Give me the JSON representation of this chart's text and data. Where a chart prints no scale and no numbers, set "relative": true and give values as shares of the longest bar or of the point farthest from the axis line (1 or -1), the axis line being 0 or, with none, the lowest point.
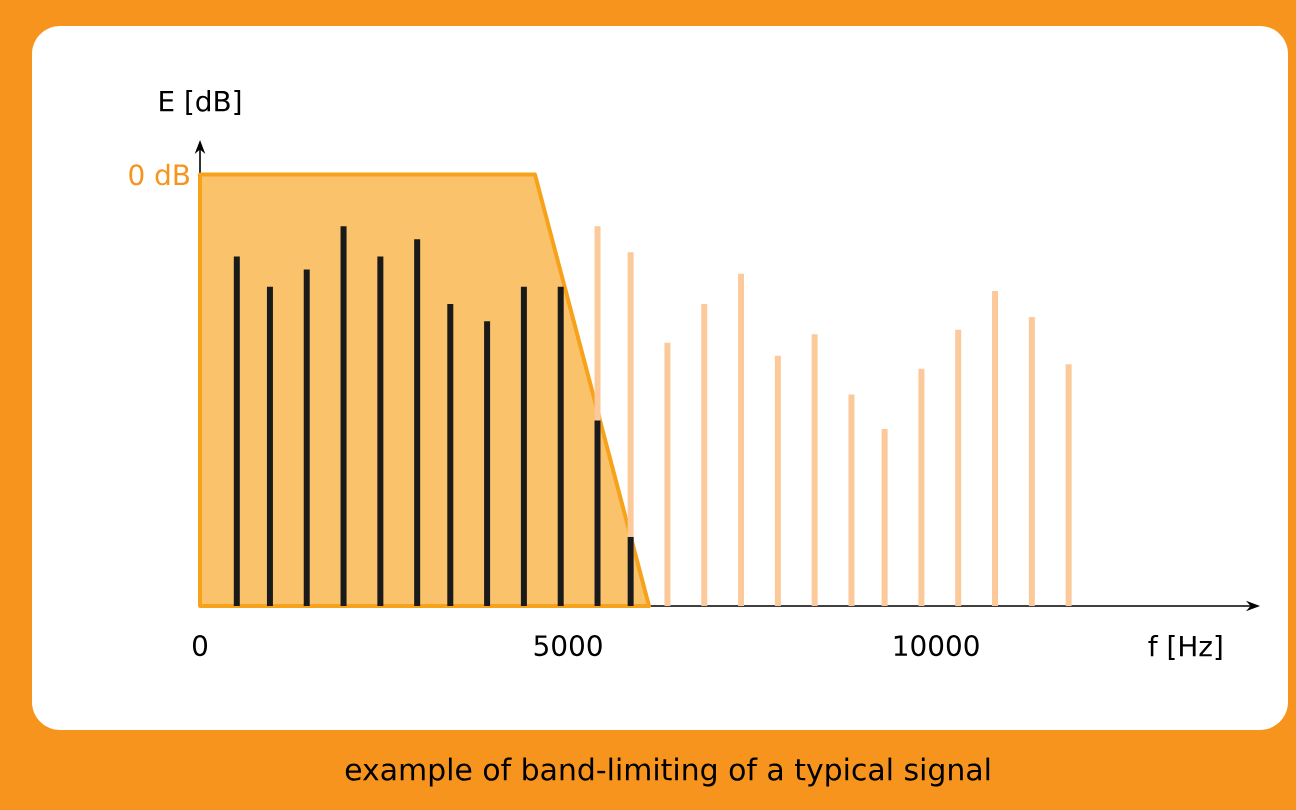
{
  "chart_data": {
    "type": "bar",
    "relative": true,
    "xlabel": "f [Hz]",
    "ylabel": "E [dB]",
    "xlim": [
      0,
      14400
    ],
    "xticks": [
      0,
      5000,
      10000
    ],
    "series": [
      {
        "type": "area",
        "color": "#f7a21b",
        "x": [
          0,
          4550,
          6100
        ],
        "values": [
          1,
          1,
          0
        ]
      },
      {
        "color": "#fcc99b",
        "x": [
          5400,
          5850,
          6350,
          6850,
          7350,
          7850,
          8350,
          8850,
          9300,
          9800,
          10300,
          10800,
          11300,
          11800
        ],
        "values": [
          0.88,
          0.82,
          0.61,
          0.7,
          0.77,
          0.58,
          0.63,
          0.49,
          0.41,
          0.55,
          0.64,
          0.73,
          0.67,
          0.56
        ]
      },
      {
        "color": "#1a1a1a",
        "x": [
          500,
          950,
          1450,
          1950,
          2450,
          2950,
          3400,
          3900,
          4400,
          4900,
          5400,
          5850
        ],
        "values": [
          0.81,
          0.74,
          0.78,
          0.88,
          0.81,
          0.85,
          0.7,
          0.66,
          0.74,
          0.74,
          0.43,
          0.16
        ]
      }
    ],
    "annotations": [
      "0 dB",
      "example of band-limiting of a typical signal"
    ]
  }
}
